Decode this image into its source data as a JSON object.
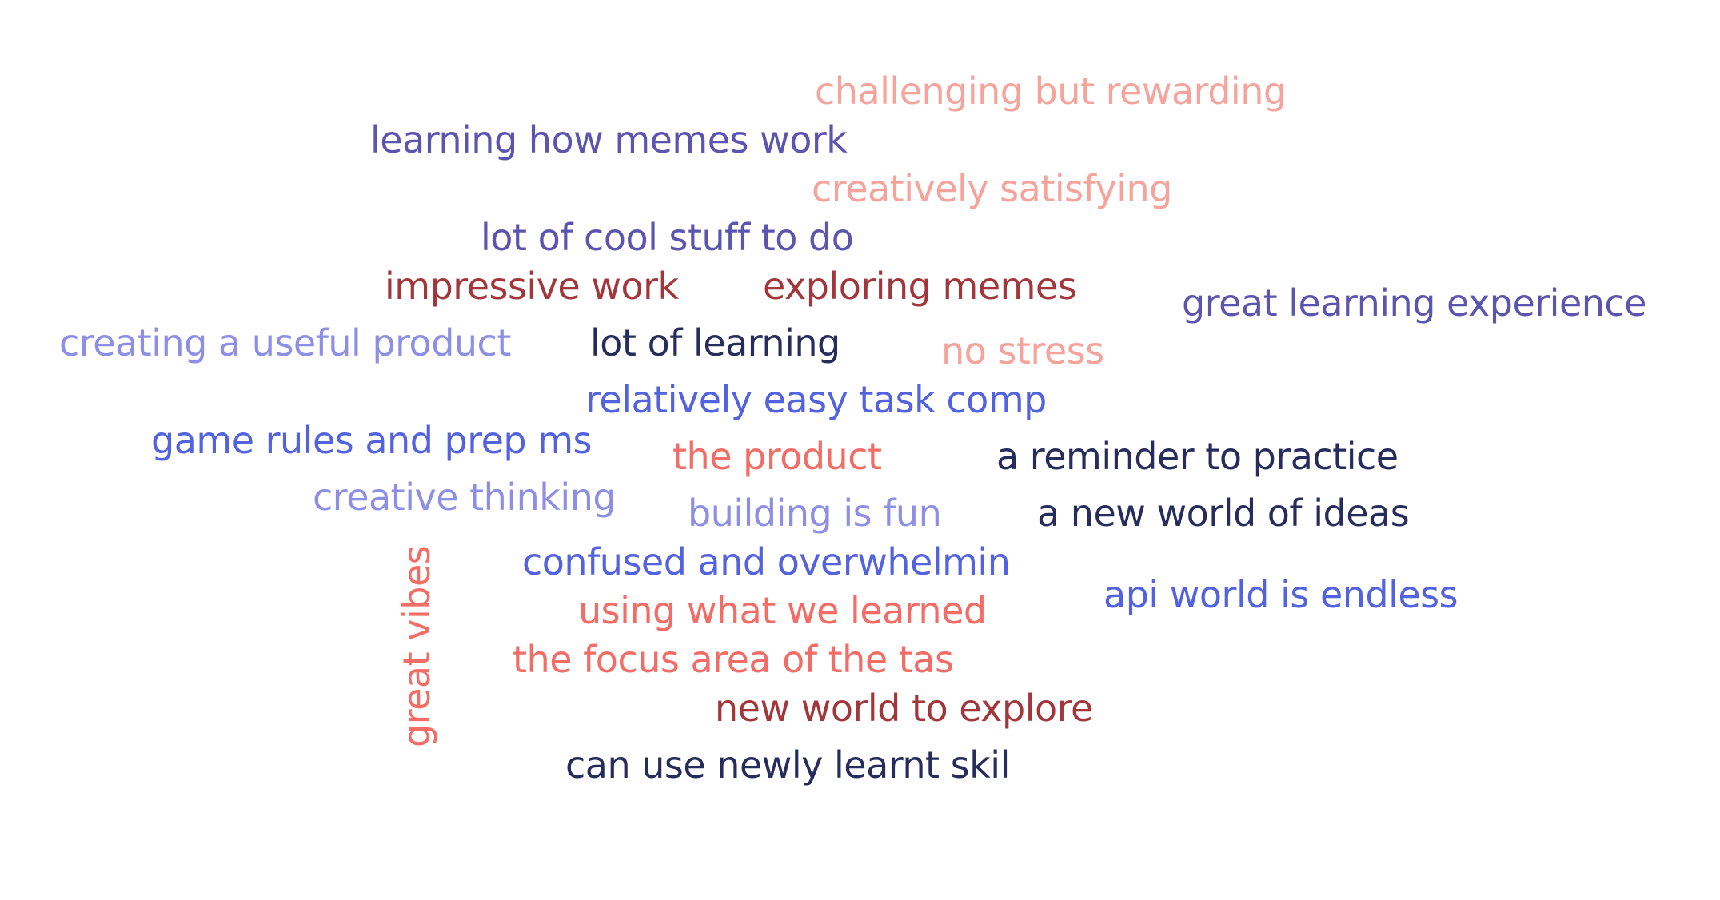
{
  "palette": {
    "pink": "#f6a39c",
    "purple": "#5c55b0",
    "maroon": "#a3363a",
    "lilac": "#8d8fe6",
    "navy": "#262c5c",
    "blue": "#5363e0",
    "coral": "#f36d66"
  },
  "words": [
    {
      "text": "challenging but rewarding",
      "color": "pink"
    },
    {
      "text": "learning how memes work",
      "color": "purple"
    },
    {
      "text": "creatively satisfying",
      "color": "pink"
    },
    {
      "text": "lot of cool stuff to do",
      "color": "purple"
    },
    {
      "text": "impressive work",
      "color": "maroon"
    },
    {
      "text": "exploring memes",
      "color": "maroon"
    },
    {
      "text": "great learning experience",
      "color": "purple"
    },
    {
      "text": "creating a useful product",
      "color": "lilac"
    },
    {
      "text": "lot of learning",
      "color": "navy"
    },
    {
      "text": "no stress",
      "color": "pink"
    },
    {
      "text": "relatively easy task comp",
      "color": "blue"
    },
    {
      "text": "game rules and prep ms",
      "color": "blue"
    },
    {
      "text": "the product",
      "color": "coral"
    },
    {
      "text": "a reminder to practice",
      "color": "navy"
    },
    {
      "text": "creative thinking",
      "color": "lilac"
    },
    {
      "text": "building is fun",
      "color": "lilac"
    },
    {
      "text": "a new world of ideas",
      "color": "navy"
    },
    {
      "text": "confused and overwhelmin",
      "color": "blue"
    },
    {
      "text": "api world is endless",
      "color": "blue"
    },
    {
      "text": "using what we learned",
      "color": "coral"
    },
    {
      "text": "the focus area of the tas",
      "color": "coral"
    },
    {
      "text": "new world to explore",
      "color": "maroon"
    },
    {
      "text": "can use newly learnt skil",
      "color": "navy"
    },
    {
      "text": "great vibes",
      "color": "coral",
      "orientation": "vertical"
    }
  ]
}
